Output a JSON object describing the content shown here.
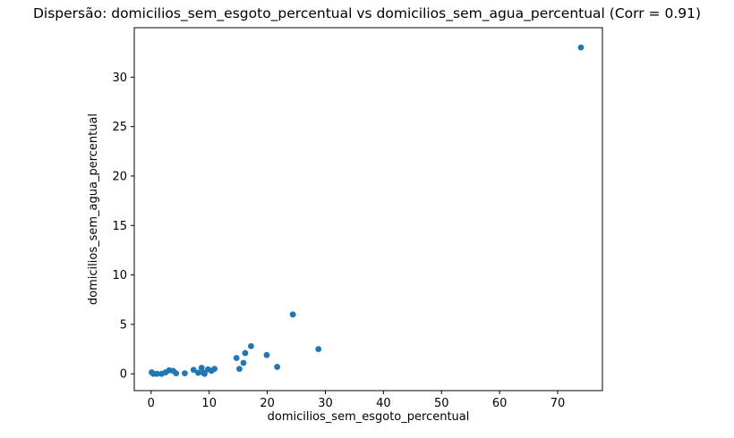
{
  "window": {
    "background": "#ffffff"
  },
  "chart_data": {
    "type": "scatter",
    "title": "Dispersão: domicilios_sem_esgoto_percentual vs domicilios_sem_agua_percentual (Corr = 0.91)",
    "xlabel": "domicilios_sem_esgoto_percentual",
    "ylabel": "domicilios_sem_agua_percentual",
    "correlation": "0.91",
    "marker_color": "#1f77b4",
    "axis_color": "#000000",
    "xlim": [
      -2.9,
      77.7
    ],
    "ylim": [
      -1.7,
      35.0
    ],
    "xticks": [
      0,
      10,
      20,
      30,
      40,
      50,
      60,
      70
    ],
    "yticks": [
      0,
      5,
      10,
      15,
      20,
      25,
      30
    ],
    "grid": false,
    "legend_position": "none",
    "points": [
      [
        0.1,
        0.15
      ],
      [
        0.4,
        0.0
      ],
      [
        1.0,
        0.0
      ],
      [
        1.8,
        0.0
      ],
      [
        2.5,
        0.15
      ],
      [
        3.1,
        0.35
      ],
      [
        3.8,
        0.3
      ],
      [
        4.3,
        0.05
      ],
      [
        5.8,
        0.05
      ],
      [
        7.3,
        0.4
      ],
      [
        8.1,
        0.1
      ],
      [
        8.7,
        0.6
      ],
      [
        9.0,
        0.1
      ],
      [
        9.2,
        0.0
      ],
      [
        9.8,
        0.45
      ],
      [
        10.4,
        0.3
      ],
      [
        10.9,
        0.5
      ],
      [
        14.7,
        1.6
      ],
      [
        15.2,
        0.5
      ],
      [
        15.9,
        1.1
      ],
      [
        16.2,
        2.1
      ],
      [
        17.2,
        2.8
      ],
      [
        19.9,
        1.9
      ],
      [
        21.7,
        0.7
      ],
      [
        24.4,
        6.0
      ],
      [
        28.8,
        2.5
      ],
      [
        74.0,
        33.0
      ]
    ]
  }
}
